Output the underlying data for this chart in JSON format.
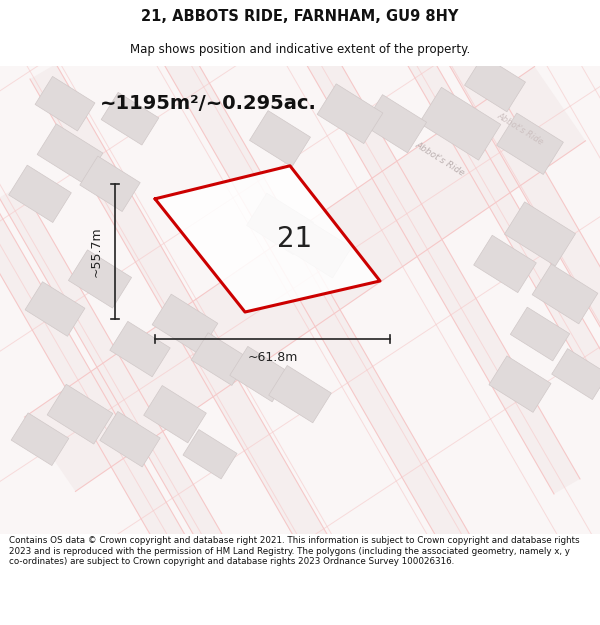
{
  "title_line1": "21, ABBOTS RIDE, FARNHAM, GU9 8HY",
  "title_line2": "Map shows position and indicative extent of the property.",
  "area_text": "~1195m²/~0.295ac.",
  "label_21": "21",
  "dim_height": "~55.7m",
  "dim_width": "~61.8m",
  "footer_text": "Contains OS data © Crown copyright and database right 2021. This information is subject to Crown copyright and database rights 2023 and is reproduced with the permission of HM Land Registry. The polygons (including the associated geometry, namely x, y co-ordinates) are subject to Crown copyright and database rights 2023 Ordnance Survey 100026316.",
  "bg_color": "#ffffff",
  "road_color": "#f5c8c8",
  "road_fill": "#f9f0f0",
  "building_fill": "#e0dada",
  "building_edge": "#d0c8c8",
  "plot_color": "#cc0000",
  "dim_color": "#222222",
  "text_color": "#111111",
  "street_color": "#bbb0b0",
  "street_label1": "Abbot's Ride",
  "street_label2": "Abbot's Ride"
}
